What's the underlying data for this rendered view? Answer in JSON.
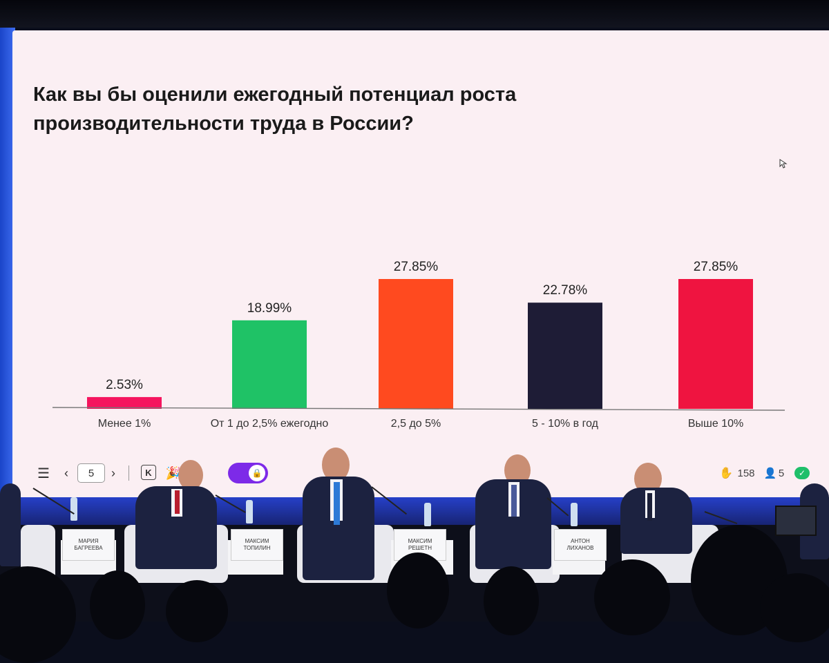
{
  "slide": {
    "title": "Как вы бы оценили ежегодный потенциал роста производительности труда в России?"
  },
  "chart_data": {
    "type": "bar",
    "title": "Как вы бы оценили ежегодный потенциал роста производительности труда в России?",
    "categories": [
      "Менее 1%",
      "От 1 до 2,5% ежегодно",
      "2,5 до 5%",
      "5 - 10% в год",
      "Выше 10%"
    ],
    "values": [
      2.53,
      18.99,
      27.85,
      22.78,
      27.85
    ],
    "value_labels": [
      "2.53%",
      "18.99%",
      "27.85%",
      "22.78%",
      "27.85%"
    ],
    "colors": [
      "#f5155e",
      "#1fc266",
      "#ff4a1f",
      "#1e1c36",
      "#ef1440"
    ],
    "ylim": [
      0,
      27.85
    ],
    "grid": false,
    "legend": "none"
  },
  "toolbar": {
    "slide_number": "5",
    "votes": "158",
    "participants": "5",
    "menu_icon": "hamburger-menu-icon",
    "prev_icon": "chevron-left-icon",
    "next_icon": "chevron-right-icon",
    "k_icon": "k-key-icon",
    "confetti_icon": "confetti-icon",
    "hide_icon": "eye-off-icon",
    "toggle_icon": "lock-icon",
    "hand_icon": "raised-hand-icon",
    "user_icon": "participant-icon",
    "check_icon": "check-badge-icon",
    "accent_color": "#7d2ae8",
    "status_color": "#1fbf6a"
  },
  "stage": {
    "nameplates": [
      "МАРИЯ\nБАГРЕЕВА",
      "МАКСИМ\nТОПИЛИН",
      "МАКСИМ\nРЕШЕТН",
      "АНТОН\nЛИХАНОВ"
    ]
  }
}
